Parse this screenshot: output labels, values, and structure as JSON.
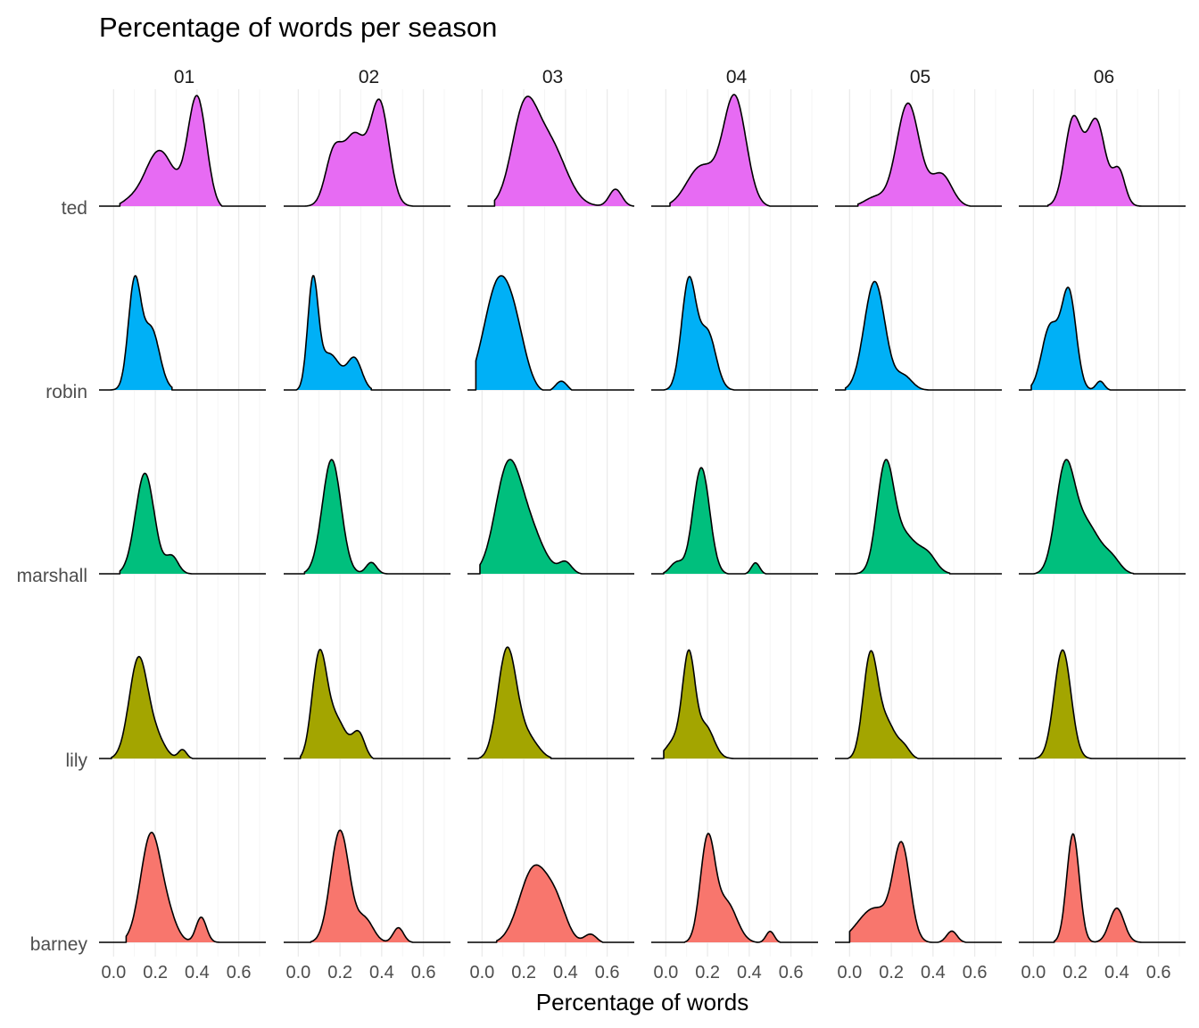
{
  "chart_data": {
    "type": "ridgeline-density",
    "title": "Percentage of words per season",
    "xlabel": "Percentage of words",
    "ylabel": "",
    "xlim": [
      -0.07,
      0.73
    ],
    "x_ticks": [
      "0.0",
      "0.2",
      "0.4",
      "0.6"
    ],
    "x_tick_values": [
      0.0,
      0.2,
      0.4,
      0.6
    ],
    "grid": true,
    "legend": "none",
    "facets": [
      "01",
      "02",
      "03",
      "04",
      "05",
      "06"
    ],
    "characters": [
      "ted",
      "robin",
      "marshall",
      "lily",
      "barney"
    ],
    "colors": {
      "ted": "#E76BF3",
      "robin": "#00B0F6",
      "marshall": "#00BF7D",
      "lily": "#A3A500",
      "barney": "#F8766D"
    },
    "series": {
      "01": {
        "ted": {
          "range": [
            0.03,
            0.52
          ],
          "peaks": [
            [
              0.07,
              0.05,
              0.05
            ],
            [
              0.22,
              0.5,
              0.07
            ],
            [
              0.4,
              0.95,
              0.045
            ]
          ]
        },
        "robin": {
          "range": [
            -0.02,
            0.28
          ],
          "peaks": [
            [
              0.1,
              0.95,
              0.03
            ],
            [
              0.18,
              0.55,
              0.04
            ]
          ]
        },
        "marshall": {
          "range": [
            0.03,
            0.38
          ],
          "peaks": [
            [
              0.15,
              0.88,
              0.045
            ],
            [
              0.28,
              0.15,
              0.03
            ]
          ]
        },
        "lily": {
          "range": [
            -0.01,
            0.38
          ],
          "peaks": [
            [
              0.12,
              0.88,
              0.045
            ],
            [
              0.21,
              0.15,
              0.04
            ],
            [
              0.33,
              0.08,
              0.02
            ]
          ]
        },
        "barney": {
          "range": [
            0.06,
            0.52
          ],
          "peaks": [
            [
              0.18,
              0.95,
              0.05
            ],
            [
              0.27,
              0.15,
              0.04
            ],
            [
              0.42,
              0.22,
              0.025
            ]
          ]
        }
      },
      "02": {
        "ted": {
          "range": [
            0.03,
            0.55
          ],
          "peaks": [
            [
              0.17,
              0.45,
              0.04
            ],
            [
              0.27,
              0.6,
              0.05
            ],
            [
              0.39,
              0.9,
              0.045
            ]
          ]
        },
        "robin": {
          "range": [
            -0.01,
            0.35
          ],
          "peaks": [
            [
              0.07,
              1.0,
              0.025
            ],
            [
              0.15,
              0.35,
              0.05
            ],
            [
              0.27,
              0.3,
              0.035
            ]
          ]
        },
        "marshall": {
          "range": [
            0.03,
            0.43
          ],
          "peaks": [
            [
              0.16,
              1.0,
              0.045
            ],
            [
              0.35,
              0.1,
              0.025
            ]
          ]
        },
        "lily": {
          "range": [
            0.01,
            0.36
          ],
          "peaks": [
            [
              0.1,
              0.85,
              0.035
            ],
            [
              0.18,
              0.35,
              0.05
            ],
            [
              0.29,
              0.22,
              0.03
            ]
          ]
        },
        "barney": {
          "range": [
            0.06,
            0.55
          ],
          "peaks": [
            [
              0.2,
              0.98,
              0.045
            ],
            [
              0.32,
              0.2,
              0.04
            ],
            [
              0.48,
              0.13,
              0.025
            ]
          ]
        }
      },
      "03": {
        "ted": {
          "range": [
            0.06,
            0.73
          ],
          "peaks": [
            [
              0.2,
              0.75,
              0.06
            ],
            [
              0.32,
              0.55,
              0.08
            ],
            [
              0.64,
              0.15,
              0.03
            ]
          ]
        },
        "robin": {
          "range": [
            -0.03,
            0.43
          ],
          "peaks": [
            [
              0.08,
              0.95,
              0.07
            ],
            [
              0.17,
              0.25,
              0.05
            ],
            [
              0.38,
              0.1,
              0.03
            ]
          ]
        },
        "marshall": {
          "range": [
            -0.01,
            0.48
          ],
          "peaks": [
            [
              0.12,
              0.85,
              0.06
            ],
            [
              0.22,
              0.4,
              0.07
            ],
            [
              0.4,
              0.1,
              0.03
            ]
          ]
        },
        "lily": {
          "range": [
            -0.02,
            0.33
          ],
          "peaks": [
            [
              0.12,
              0.95,
              0.045
            ],
            [
              0.22,
              0.18,
              0.05
            ]
          ]
        },
        "barney": {
          "range": [
            0.07,
            0.58
          ],
          "peaks": [
            [
              0.25,
              0.65,
              0.07
            ],
            [
              0.36,
              0.25,
              0.05
            ],
            [
              0.52,
              0.08,
              0.03
            ]
          ]
        }
      },
      "04": {
        "ted": {
          "range": [
            0.02,
            0.5
          ],
          "peaks": [
            [
              0.17,
              0.35,
              0.07
            ],
            [
              0.33,
              0.95,
              0.055
            ]
          ]
        },
        "robin": {
          "range": [
            -0.01,
            0.33
          ],
          "peaks": [
            [
              0.11,
              0.95,
              0.035
            ],
            [
              0.2,
              0.5,
              0.04
            ]
          ]
        },
        "marshall": {
          "range": [
            -0.01,
            0.48
          ],
          "peaks": [
            [
              0.05,
              0.1,
              0.03
            ],
            [
              0.17,
              0.93,
              0.04
            ],
            [
              0.43,
              0.1,
              0.02
            ]
          ]
        },
        "lily": {
          "range": [
            -0.01,
            0.33
          ],
          "peaks": [
            [
              0.04,
              0.15,
              0.04
            ],
            [
              0.11,
              0.88,
              0.03
            ],
            [
              0.19,
              0.28,
              0.04
            ]
          ]
        },
        "barney": {
          "range": [
            0.09,
            0.55
          ],
          "peaks": [
            [
              0.2,
              0.88,
              0.035
            ],
            [
              0.29,
              0.35,
              0.05
            ],
            [
              0.5,
              0.1,
              0.02
            ]
          ]
        }
      },
      "05": {
        "ted": {
          "range": [
            0.04,
            0.58
          ],
          "peaks": [
            [
              0.12,
              0.08,
              0.05
            ],
            [
              0.28,
              0.9,
              0.055
            ],
            [
              0.44,
              0.28,
              0.05
            ]
          ]
        },
        "robin": {
          "range": [
            -0.02,
            0.38
          ],
          "peaks": [
            [
              0.12,
              0.95,
              0.05
            ],
            [
              0.26,
              0.12,
              0.04
            ]
          ]
        },
        "marshall": {
          "range": [
            0.02,
            0.48
          ],
          "peaks": [
            [
              0.17,
              0.88,
              0.04
            ],
            [
              0.26,
              0.35,
              0.07
            ],
            [
              0.38,
              0.12,
              0.04
            ]
          ]
        },
        "lily": {
          "range": [
            -0.01,
            0.33
          ],
          "peaks": [
            [
              0.1,
              0.9,
              0.035
            ],
            [
              0.18,
              0.3,
              0.04
            ],
            [
              0.26,
              0.1,
              0.03
            ]
          ]
        },
        "barney": {
          "range": [
            0.0,
            0.56
          ],
          "peaks": [
            [
              0.12,
              0.3,
              0.08
            ],
            [
              0.25,
              0.8,
              0.04
            ],
            [
              0.49,
              0.1,
              0.025
            ]
          ]
        }
      },
      "06": {
        "ted": {
          "range": [
            0.07,
            0.53
          ],
          "peaks": [
            [
              0.19,
              0.75,
              0.04
            ],
            [
              0.3,
              0.75,
              0.045
            ],
            [
              0.41,
              0.3,
              0.03
            ]
          ]
        },
        "robin": {
          "range": [
            -0.01,
            0.37
          ],
          "peaks": [
            [
              0.08,
              0.55,
              0.04
            ],
            [
              0.17,
              0.85,
              0.035
            ],
            [
              0.32,
              0.08,
              0.02
            ]
          ]
        },
        "marshall": {
          "range": [
            0.0,
            0.48
          ],
          "peaks": [
            [
              0.15,
              0.85,
              0.045
            ],
            [
              0.25,
              0.45,
              0.07
            ],
            [
              0.38,
              0.1,
              0.04
            ]
          ]
        },
        "lily": {
          "range": [
            0.01,
            0.28
          ],
          "peaks": [
            [
              0.14,
              0.95,
              0.04
            ]
          ]
        },
        "barney": {
          "range": [
            0.1,
            0.52
          ],
          "peaks": [
            [
              0.19,
              0.95,
              0.03
            ],
            [
              0.4,
              0.3,
              0.035
            ]
          ]
        }
      }
    }
  }
}
